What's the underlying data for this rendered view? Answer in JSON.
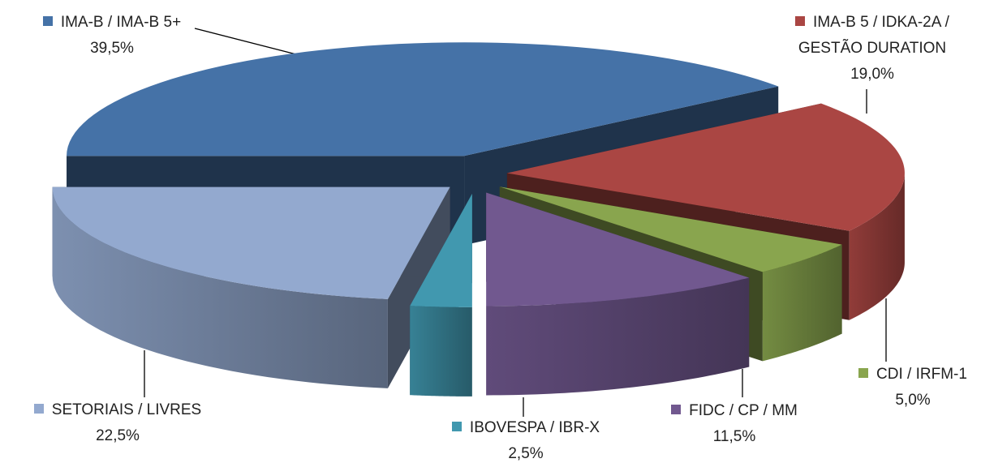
{
  "chart_data": {
    "type": "pie",
    "categories": [
      "IMA-B / IMA-B 5+",
      "IMA-B 5 / IDKA-2A / GESTÃO DURATION",
      "CDI / IRFM-1",
      "FIDC / CP / MM",
      "IBOVESPA / IBR-X",
      "SETORIAIS / LIVRES"
    ],
    "values": [
      39.5,
      19.0,
      5.0,
      11.5,
      2.5,
      22.5
    ],
    "value_labels": [
      "39,5%",
      "19,0%",
      "5,0%",
      "11,5%",
      "2,5%",
      "22,5%"
    ],
    "colors": [
      "#4572a7",
      "#aa4643",
      "#89a54e",
      "#71588f",
      "#4198af",
      "#93a9cf"
    ]
  }
}
